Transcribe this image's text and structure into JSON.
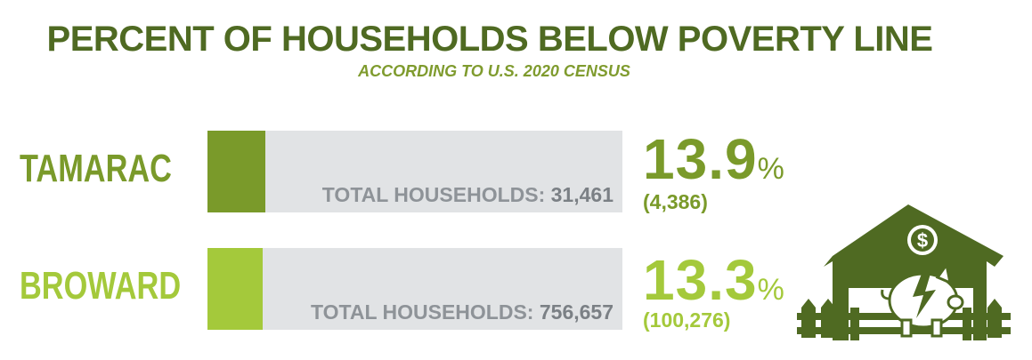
{
  "chart_data": {
    "type": "bar",
    "title": "PERCENT OF HOUSEHOLDS BELOW POVERTY LINE",
    "subtitle": "ACCORDING TO U.S. 2020 CENSUS",
    "categories": [
      "TAMARAC",
      "BROWARD"
    ],
    "values": [
      13.9,
      13.3
    ],
    "value_suffix": "%",
    "value_max": 100,
    "households_below_poverty_labels": [
      "(4,386)",
      "(100,276)"
    ],
    "total_households_label": "TOTAL HOUSEHOLDS:",
    "total_households": [
      "31,461",
      "756,657"
    ],
    "colors": [
      "#7a9a2a",
      "#a4c93b"
    ],
    "track_color": "#e1e3e5",
    "grid": false,
    "legend": "none"
  },
  "icon": {
    "name": "house-piggy-bank-icon",
    "dollar_symbol": "$",
    "color": "#4f6a22"
  }
}
